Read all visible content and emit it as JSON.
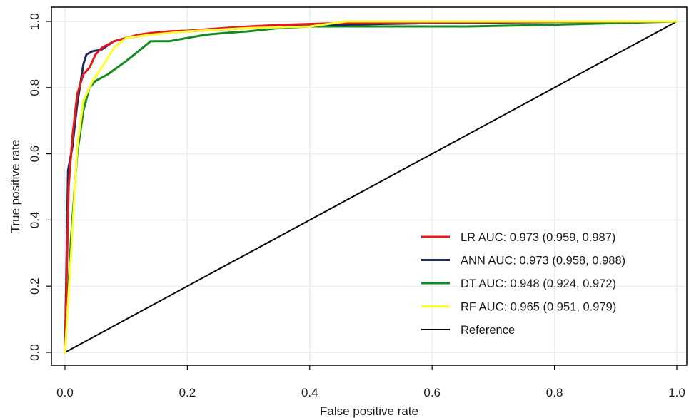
{
  "chart_data": {
    "type": "line",
    "title": "",
    "xlabel": "False positive rate",
    "ylabel": "True positive rate",
    "xlim": [
      0,
      1
    ],
    "ylim": [
      0,
      1
    ],
    "x_ticks": [
      "0.0",
      "0.2",
      "0.4",
      "0.6",
      "0.8",
      "1.0"
    ],
    "y_ticks": [
      "0.0",
      "0.2",
      "0.4",
      "0.6",
      "0.8",
      "1.0"
    ],
    "grid": true,
    "legend_position": "bottom-right",
    "series": [
      {
        "name": "LR AUC: 0.973 (0.959, 0.987)",
        "color": "#e3191c",
        "x": [
          0,
          0.006,
          0.012,
          0.02,
          0.03,
          0.04,
          0.05,
          0.06,
          0.07,
          0.08,
          0.1,
          0.12,
          0.14,
          0.17,
          0.2,
          0.26,
          0.3,
          0.36,
          0.45,
          0.6,
          0.8,
          1.0
        ],
        "y": [
          0,
          0.5,
          0.65,
          0.78,
          0.84,
          0.86,
          0.9,
          0.92,
          0.93,
          0.94,
          0.95,
          0.96,
          0.965,
          0.97,
          0.972,
          0.98,
          0.985,
          0.99,
          0.995,
          0.997,
          0.999,
          1.0
        ]
      },
      {
        "name": "ANN AUC: 0.973 (0.958, 0.988)",
        "color": "#1f2a5c",
        "x": [
          0,
          0.005,
          0.012,
          0.02,
          0.03,
          0.035,
          0.045,
          0.06,
          0.08,
          0.1,
          0.12,
          0.15,
          0.2,
          0.3,
          0.36,
          0.45,
          0.6,
          0.8,
          1.0
        ],
        "y": [
          0,
          0.55,
          0.62,
          0.75,
          0.87,
          0.9,
          0.91,
          0.915,
          0.94,
          0.95,
          0.955,
          0.965,
          0.97,
          0.98,
          0.99,
          0.99,
          0.995,
          0.998,
          1.0
        ]
      },
      {
        "name": "DT AUC: 0.948 (0.924, 0.972)",
        "color": "#138b1e",
        "x": [
          0,
          0.01,
          0.02,
          0.03,
          0.04,
          0.05,
          0.07,
          0.1,
          0.12,
          0.14,
          0.17,
          0.2,
          0.23,
          0.26,
          0.3,
          0.35,
          0.4,
          0.5,
          0.6,
          0.66,
          0.8,
          0.9,
          1.0
        ],
        "y": [
          0,
          0.35,
          0.6,
          0.73,
          0.8,
          0.82,
          0.84,
          0.88,
          0.91,
          0.94,
          0.94,
          0.95,
          0.96,
          0.965,
          0.97,
          0.98,
          0.985,
          0.985,
          0.985,
          0.985,
          0.99,
          0.995,
          1.0
        ]
      },
      {
        "name": "RF AUC: 0.965 (0.951, 0.979)",
        "color": "#ffff33",
        "x": [
          0,
          0.01,
          0.02,
          0.03,
          0.045,
          0.06,
          0.08,
          0.1,
          0.14,
          0.2,
          0.3,
          0.4,
          0.46,
          0.5,
          0.6,
          0.8,
          1.0
        ],
        "y": [
          0,
          0.3,
          0.62,
          0.76,
          0.82,
          0.86,
          0.92,
          0.95,
          0.96,
          0.97,
          0.98,
          0.985,
          1.0,
          1.0,
          1.0,
          1.0,
          1.0
        ]
      },
      {
        "name": "Reference",
        "color": "#000000",
        "x": [
          0,
          1
        ],
        "y": [
          0,
          1
        ]
      }
    ]
  },
  "colors": {
    "plot_background": "#ffffff",
    "grid": "#e8eef2",
    "frame": "#000000"
  }
}
